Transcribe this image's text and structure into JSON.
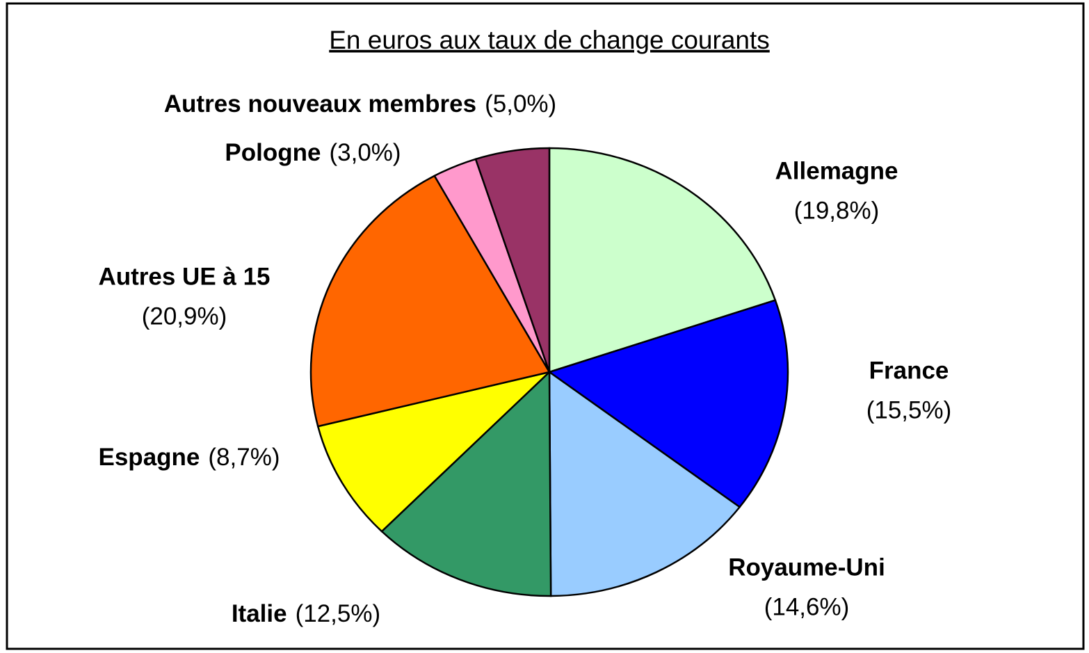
{
  "chart_data": {
    "type": "pie",
    "title": "En euros aux taux de change courants",
    "categories": [
      "Allemagne",
      "France",
      "Royaume-Uni",
      "Italie",
      "Espagne",
      "Autres UE à 15",
      "Pologne",
      "Autres nouveaux membres"
    ],
    "values": [
      19.8,
      15.5,
      14.6,
      12.5,
      8.7,
      20.9,
      3.0,
      5.0
    ],
    "value_labels": [
      "(19,8%)",
      "(15,5%)",
      "(14,6%)",
      "(12,5%)",
      "(8,7%)",
      "(20,9%)",
      "(3,0%)",
      "(5,0%)"
    ],
    "colors": [
      "#ccffcc",
      "#0000ff",
      "#99ccff",
      "#339966",
      "#ffff00",
      "#ff6600",
      "#ff99cc",
      "#993366"
    ]
  }
}
